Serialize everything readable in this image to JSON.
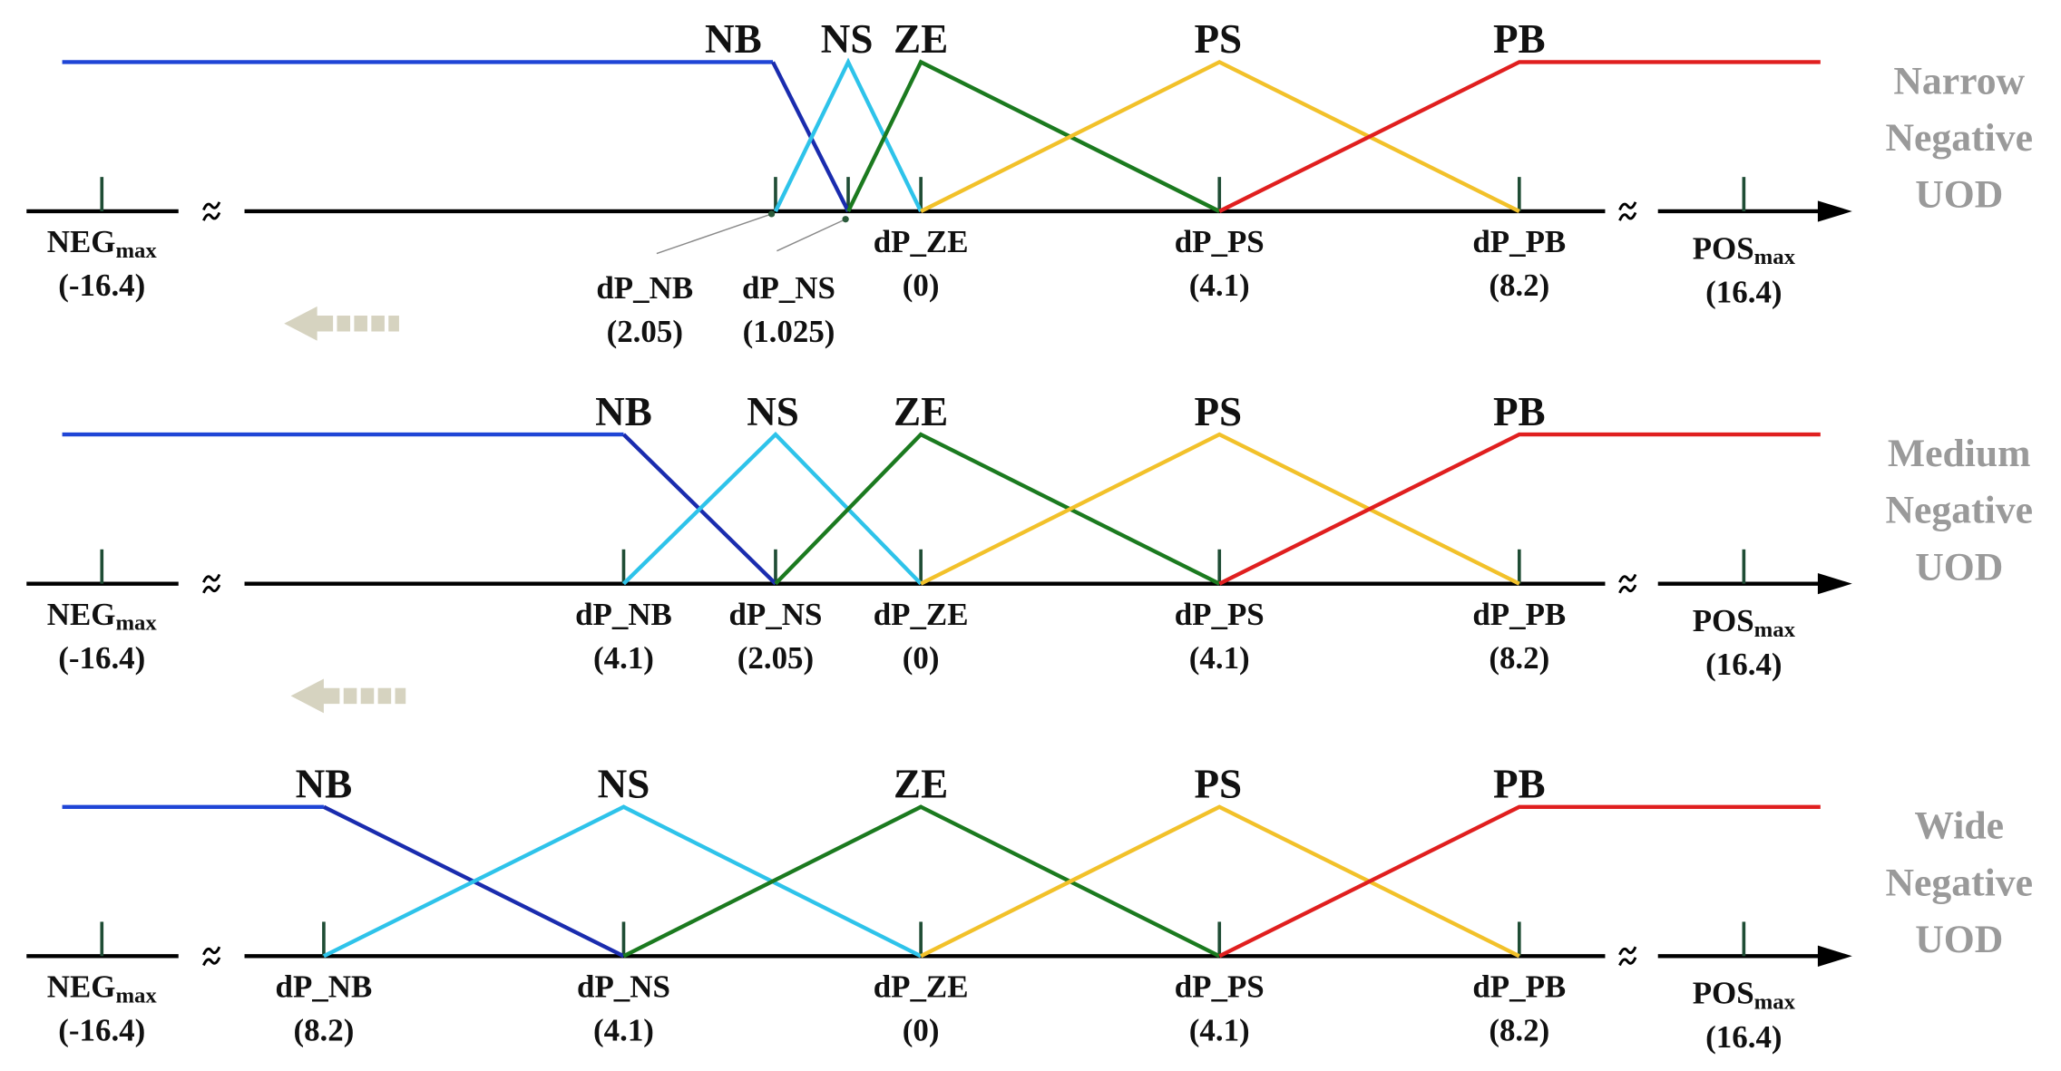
{
  "panels": [
    {
      "side_label": [
        "Narrow",
        "Negative",
        "UOD"
      ],
      "mf_labels": [
        "NB",
        "NS",
        "ZE",
        "PS",
        "PB"
      ],
      "ticks": [
        {
          "name": "NEG",
          "sub": "max",
          "value": "(-16.4)"
        },
        {
          "name": "dP_NB",
          "value": "(2.05)"
        },
        {
          "name": "dP_NS",
          "value": "(1.025)"
        },
        {
          "name": "dP_ZE",
          "value": "(0)"
        },
        {
          "name": "dP_PS",
          "value": "(4.1)"
        },
        {
          "name": "dP_PB",
          "value": "(8.2)"
        },
        {
          "name": "POS",
          "sub": "max",
          "value": "(16.4)"
        }
      ]
    },
    {
      "side_label": [
        "Medium",
        "Negative",
        "UOD"
      ],
      "mf_labels": [
        "NB",
        "NS",
        "ZE",
        "PS",
        "PB"
      ],
      "ticks": [
        {
          "name": "NEG",
          "sub": "max",
          "value": "(-16.4)"
        },
        {
          "name": "dP_NB",
          "value": "(4.1)"
        },
        {
          "name": "dP_NS",
          "value": "(2.05)"
        },
        {
          "name": "dP_ZE",
          "value": "(0)"
        },
        {
          "name": "dP_PS",
          "value": "(4.1)"
        },
        {
          "name": "dP_PB",
          "value": "(8.2)"
        },
        {
          "name": "POS",
          "sub": "max",
          "value": "(16.4)"
        }
      ]
    },
    {
      "side_label": [
        "Wide",
        "Negative",
        "UOD"
      ],
      "mf_labels": [
        "NB",
        "NS",
        "ZE",
        "PS",
        "PB"
      ],
      "ticks": [
        {
          "name": "NEG",
          "sub": "max",
          "value": "(-16.4)"
        },
        {
          "name": "dP_NB",
          "value": "(8.2)"
        },
        {
          "name": "dP_NS",
          "value": "(4.1)"
        },
        {
          "name": "dP_ZE",
          "value": "(0)"
        },
        {
          "name": "dP_PS",
          "value": "(4.1)"
        },
        {
          "name": "dP_PB",
          "value": "(8.2)"
        },
        {
          "name": "POS",
          "sub": "max",
          "value": "(16.4)"
        }
      ]
    }
  ]
}
